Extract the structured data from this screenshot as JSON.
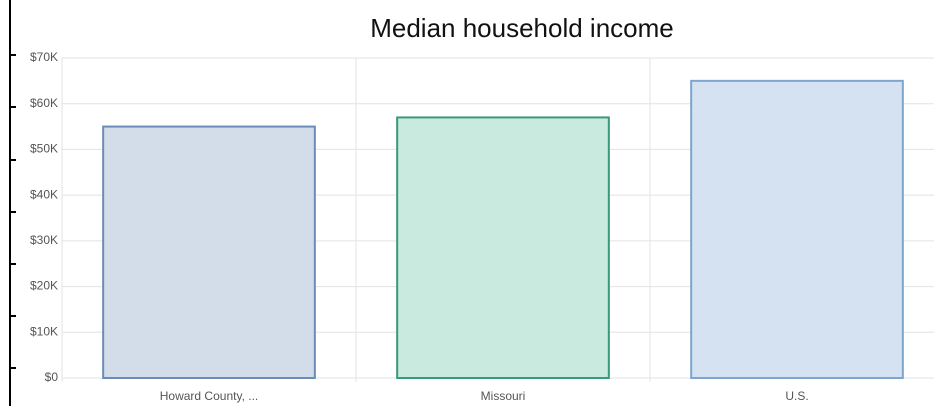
{
  "chart_data": {
    "type": "bar",
    "title": "Median household income",
    "categories": [
      "Howard County, ...",
      "Missouri",
      "U.S."
    ],
    "values": [
      55000,
      57000,
      65000
    ],
    "colors": [
      "#d3dce9",
      "#c9eadf",
      "#d4e2f1"
    ],
    "border_colors": [
      "#6b8cb8",
      "#3a9a78",
      "#7fa5cc"
    ],
    "ylim": [
      0,
      70000
    ],
    "yticks": [
      {
        "value": 0,
        "label": "$0"
      },
      {
        "value": 10000,
        "label": "$10K"
      },
      {
        "value": 20000,
        "label": "$20K"
      },
      {
        "value": 30000,
        "label": "$30K"
      },
      {
        "value": 40000,
        "label": "$40K"
      },
      {
        "value": 50000,
        "label": "$50K"
      },
      {
        "value": 60000,
        "label": "$60K"
      },
      {
        "value": 70000,
        "label": "$70K"
      }
    ],
    "grid": true
  }
}
